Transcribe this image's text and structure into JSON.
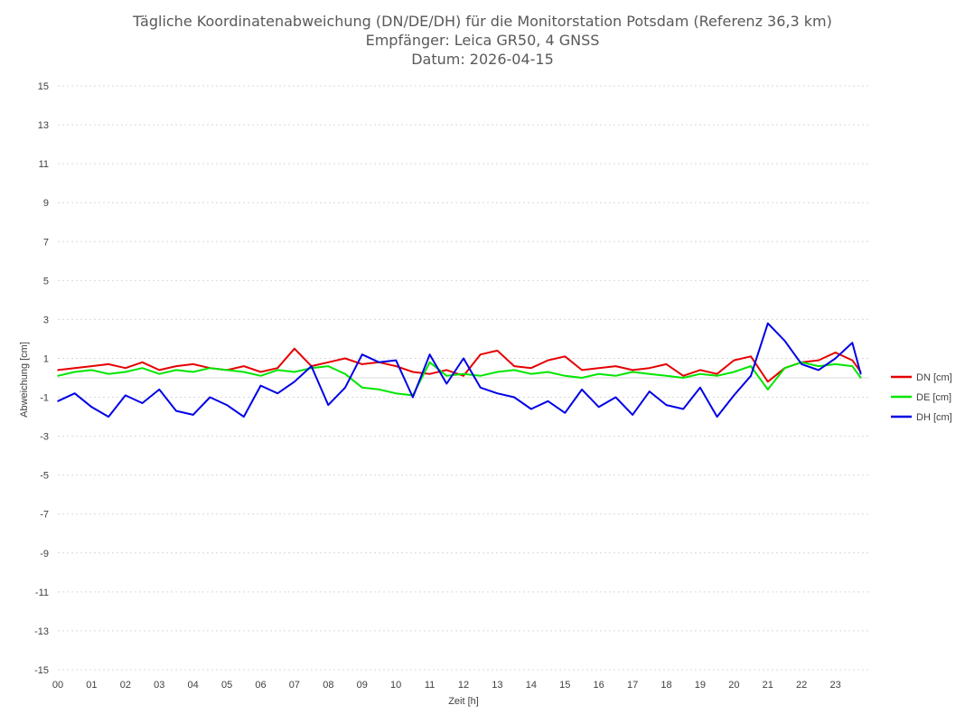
{
  "chart_data": {
    "type": "line",
    "title": [
      "Tägliche Koordinatenabweichung (DN/DE/DH) für die Monitorstation Potsdam (Referenz 36,3 km)",
      "Empfänger: Leica GR50, 4 GNSS",
      "Datum: 2026-04-15"
    ],
    "xlabel": "Zeit [h]",
    "ylabel": "Abweichung [cm]",
    "xlim": [
      0,
      24
    ],
    "ylim": [
      -15,
      15
    ],
    "x_ticks": [
      0,
      1,
      2,
      3,
      4,
      5,
      6,
      7,
      8,
      9,
      10,
      11,
      12,
      13,
      14,
      15,
      16,
      17,
      18,
      19,
      20,
      21,
      22,
      23
    ],
    "x_tick_labels": [
      "00",
      "01",
      "02",
      "03",
      "04",
      "05",
      "06",
      "07",
      "08",
      "09",
      "10",
      "11",
      "12",
      "13",
      "14",
      "15",
      "16",
      "17",
      "18",
      "19",
      "20",
      "21",
      "22",
      "23"
    ],
    "y_ticks": [
      15,
      13,
      11,
      9,
      7,
      5,
      3,
      1,
      -1,
      -3,
      -5,
      -7,
      -9,
      -11,
      -13,
      -15
    ],
    "grid": true,
    "legend_position": "right",
    "x": [
      0,
      0.5,
      1,
      1.5,
      2,
      2.5,
      3,
      3.5,
      4,
      4.5,
      5,
      5.5,
      6,
      6.5,
      7,
      7.5,
      8,
      8.5,
      9,
      9.5,
      10,
      10.5,
      11,
      11.5,
      12,
      12.5,
      13,
      13.5,
      14,
      14.5,
      15,
      15.5,
      16,
      16.5,
      17,
      17.5,
      18,
      18.5,
      19,
      19.5,
      20,
      20.5,
      21,
      21.5,
      22,
      22.5,
      23,
      23.5,
      23.75
    ],
    "series": [
      {
        "name": "DN [cm]",
        "color": "#e60000",
        "values": [
          0.4,
          0.5,
          0.6,
          0.7,
          0.5,
          0.8,
          0.4,
          0.6,
          0.7,
          0.5,
          0.4,
          0.6,
          0.3,
          0.5,
          1.5,
          0.6,
          0.8,
          1.0,
          0.7,
          0.8,
          0.6,
          0.3,
          0.2,
          0.4,
          0.1,
          1.2,
          1.4,
          0.6,
          0.5,
          0.9,
          1.1,
          0.4,
          0.5,
          0.6,
          0.4,
          0.5,
          0.7,
          0.1,
          0.4,
          0.2,
          0.9,
          1.1,
          -0.2,
          0.5,
          0.8,
          0.9,
          1.3,
          0.9,
          0.3
        ]
      },
      {
        "name": "DE [cm]",
        "color": "#00e600",
        "values": [
          0.1,
          0.3,
          0.4,
          0.2,
          0.3,
          0.5,
          0.2,
          0.4,
          0.3,
          0.5,
          0.4,
          0.3,
          0.1,
          0.4,
          0.3,
          0.5,
          0.6,
          0.2,
          -0.5,
          -0.6,
          -0.8,
          -0.9,
          0.8,
          0.1,
          0.2,
          0.1,
          0.3,
          0.4,
          0.2,
          0.3,
          0.1,
          0.0,
          0.2,
          0.1,
          0.3,
          0.2,
          0.1,
          0.0,
          0.2,
          0.1,
          0.3,
          0.6,
          -0.6,
          0.5,
          0.8,
          0.6,
          0.7,
          0.6,
          0.0
        ]
      },
      {
        "name": "DH [cm]",
        "color": "#0000e6",
        "values": [
          -1.2,
          -0.8,
          -1.5,
          -2.0,
          -0.9,
          -1.3,
          -0.6,
          -1.7,
          -1.9,
          -1.0,
          -1.4,
          -2.0,
          -0.4,
          -0.8,
          -0.2,
          0.6,
          -1.4,
          -0.5,
          1.2,
          0.8,
          0.9,
          -1.0,
          1.2,
          -0.3,
          1.0,
          -0.5,
          -0.8,
          -1.0,
          -1.6,
          -1.2,
          -1.8,
          -0.6,
          -1.5,
          -1.0,
          -1.9,
          -0.7,
          -1.4,
          -1.6,
          -0.5,
          -2.0,
          -0.9,
          0.1,
          2.8,
          1.9,
          0.7,
          0.4,
          1.0,
          1.8,
          0.2
        ]
      }
    ]
  }
}
